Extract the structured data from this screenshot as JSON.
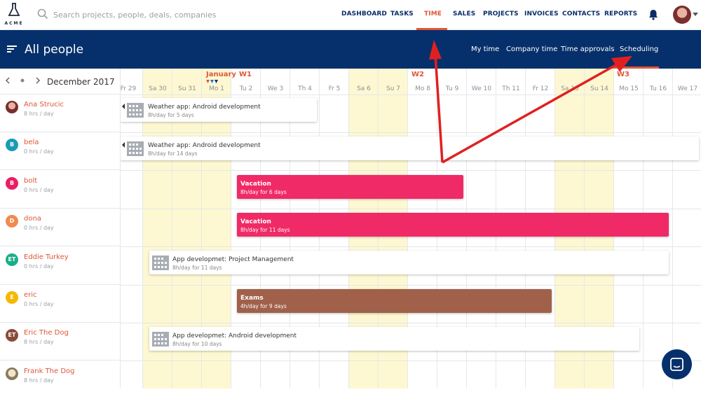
{
  "app": {
    "logo_text": "ACME"
  },
  "search": {
    "placeholder": "Search projects, people, deals, companies"
  },
  "nav": {
    "items": [
      {
        "label": "DASHBOARD"
      },
      {
        "label": "TASKS"
      },
      {
        "label": "TIME"
      },
      {
        "label": "SALES"
      },
      {
        "label": "PROJECTS"
      },
      {
        "label": "INVOICES"
      },
      {
        "label": "CONTACTS"
      },
      {
        "label": "REPORTS"
      }
    ],
    "active": "TIME"
  },
  "header": {
    "title": "All people",
    "subnav": [
      {
        "label": "My time"
      },
      {
        "label": "Company time"
      },
      {
        "label": "Time approvals"
      },
      {
        "label": "Scheduling"
      }
    ],
    "active_subnav": "Scheduling"
  },
  "calendar": {
    "month": "December 2017",
    "january_label": "January",
    "weeks": [
      "W1",
      "W2",
      "W3"
    ],
    "days": [
      "Fr 29",
      "Sa 30",
      "Su 31",
      "Mo 1",
      "Tu 2",
      "We 3",
      "Th 4",
      "Fr 5",
      "Sa 6",
      "Su 7",
      "Mo 8",
      "Tu 9",
      "We 10",
      "Th 11",
      "Fr 12",
      "Sa 13",
      "Su 14",
      "Mo 15",
      "Tu 16",
      "We 17"
    ]
  },
  "people": [
    {
      "name": "Ana Strucic",
      "hours": "8 hrs / day",
      "initials": "",
      "color": "#8b4a3a"
    },
    {
      "name": "bela",
      "hours": "0 hrs / day",
      "initials": "B",
      "color": "#1a9bb5"
    },
    {
      "name": "bolt",
      "hours": "0 hrs / day",
      "initials": "B",
      "color": "#e91e63"
    },
    {
      "name": "dona",
      "hours": "0 hrs / day",
      "initials": "D",
      "color": "#f08a50"
    },
    {
      "name": "Eddie Turkey",
      "hours": "0 hrs / day",
      "initials": "ET",
      "color": "#1aaf8b"
    },
    {
      "name": "eric",
      "hours": "0 hrs / day",
      "initials": "E",
      "color": "#f5b800"
    },
    {
      "name": "Eric The Dog",
      "hours": "8 hrs / day",
      "initials": "ET",
      "color": "#8a4a3a"
    },
    {
      "name": "Frank The Dog",
      "hours": "8 hrs / day",
      "initials": "",
      "color": "#c9b79a"
    }
  ],
  "events": [
    {
      "title": "Weather app: Android development",
      "detail": "8h/day for 5 days"
    },
    {
      "title": "Weather app: Android development",
      "detail": "8h/day for 14 days"
    },
    {
      "title": "Vacation",
      "detail": "8h/day for 6 days",
      "color": "#f02a66"
    },
    {
      "title": "Vacation",
      "detail": "8h/day for 11 days",
      "color": "#f02a66"
    },
    {
      "title": "App developmet: Project Management",
      "detail": "8h/day for 11 days"
    },
    {
      "title": "Exams",
      "detail": "4h/day for 9 days",
      "color": "#a0604a"
    },
    {
      "title": "App developmet: Android development",
      "detail": "8h/day for 10 days"
    }
  ],
  "colors": {
    "navy": "#06306b",
    "accent": "#e0563a",
    "weekend": "#fdf8d2",
    "annotation": "#e02020"
  },
  "icons": [
    "acme-logo-icon",
    "search-icon",
    "bell-icon",
    "user-avatar",
    "menu-icon",
    "chevron-left-icon",
    "dot-icon",
    "chevron-right-icon",
    "building-icon",
    "chat-icon",
    "annotation-arrow"
  ]
}
